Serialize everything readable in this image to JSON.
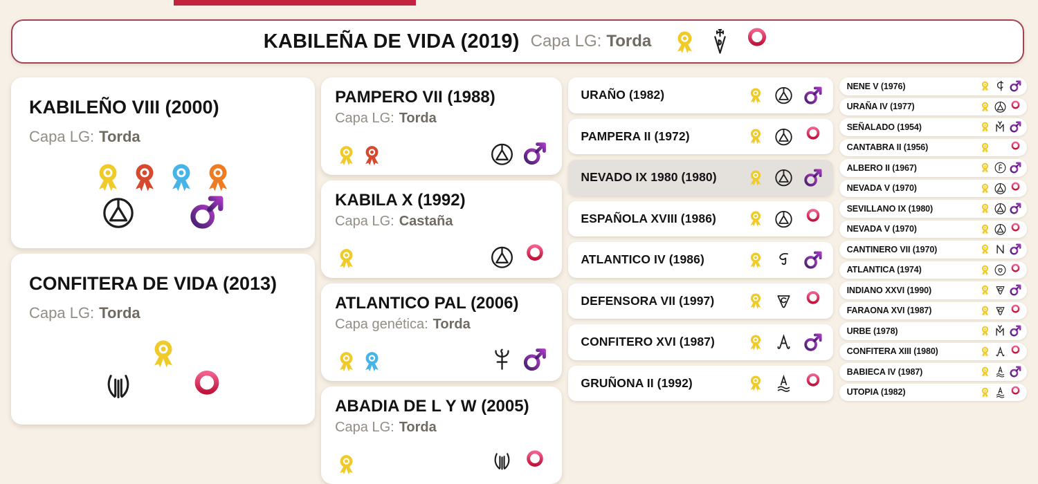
{
  "subject": {
    "name": "KABILEÑA DE VIDA (2019)",
    "capa_label": "Capa LG:",
    "capa_value": "Torda",
    "awards": [
      "yellow"
    ],
    "brand": "vida",
    "sex": "female"
  },
  "parents": [
    {
      "name": "KABILEÑO VIII (2000)",
      "capa_label": "Capa LG:",
      "capa_value": "Torda",
      "awards": [
        "yellow",
        "red",
        "blue",
        "orange"
      ],
      "brand": "circle-triangle",
      "sex": "male"
    },
    {
      "name": "CONFITERA DE VIDA (2013)",
      "capa_label": "Capa LG:",
      "capa_value": "Torda",
      "awards": [
        "yellow"
      ],
      "brand": "lyre",
      "sex": "female"
    }
  ],
  "grandparents": [
    {
      "name": "PAMPERO VII (1988)",
      "capa_label": "Capa LG:",
      "capa_value": "Torda",
      "awards": [
        "yellow",
        "red"
      ],
      "brand": "circle-triangle",
      "sex": "male"
    },
    {
      "name": "KABILA X (1992)",
      "capa_label": "Capa LG:",
      "capa_value": "Castaña",
      "awards": [
        "yellow"
      ],
      "brand": "circle-triangle",
      "sex": "female"
    },
    {
      "name": "ATLANTICO PAL (2006)",
      "capa_label": "Capa genética:",
      "capa_value": "Torda",
      "awards": [
        "yellow",
        "blue"
      ],
      "brand": "palm",
      "sex": "male"
    },
    {
      "name": "ABADIA DE L Y W (2005)",
      "capa_label": "Capa LG:",
      "capa_value": "Torda",
      "awards": [
        "yellow"
      ],
      "brand": "lyre",
      "sex": "female"
    }
  ],
  "great_grandparents": [
    {
      "name": "URAÑO (1982)",
      "awards": [
        "yellow"
      ],
      "brand": "circle-triangle",
      "sex": "male",
      "highlighted": false
    },
    {
      "name": "PAMPERA II (1972)",
      "awards": [
        "yellow"
      ],
      "brand": "circle-triangle",
      "sex": "female",
      "highlighted": false
    },
    {
      "name": "NEVADO IX 1980 (1980)",
      "awards": [
        "yellow"
      ],
      "brand": "circle-triangle",
      "sex": "male",
      "highlighted": true
    },
    {
      "name": "ESPAÑOLA XVIII (1986)",
      "awards": [
        "yellow"
      ],
      "brand": "circle-triangle",
      "sex": "female",
      "highlighted": false
    },
    {
      "name": "ATLANTICO IV (1986)",
      "awards": [
        "yellow"
      ],
      "brand": "hook",
      "sex": "male",
      "highlighted": false
    },
    {
      "name": "DEFENSORA VII (1997)",
      "awards": [
        "yellow"
      ],
      "brand": "shield-c",
      "sex": "female",
      "highlighted": false
    },
    {
      "name": "CONFITERO XVI (1987)",
      "awards": [
        "yellow"
      ],
      "brand": "a-curls",
      "sex": "male",
      "highlighted": false
    },
    {
      "name": "GRUÑONA II (1992)",
      "awards": [
        "yellow"
      ],
      "brand": "a-waves",
      "sex": "female",
      "highlighted": false
    }
  ],
  "great_great_grandparents": [
    {
      "name": "NENE V (1976)",
      "awards": [
        "yellow"
      ],
      "brand": "c-bar",
      "sex": "male"
    },
    {
      "name": "URAÑA IV (1977)",
      "awards": [
        "yellow"
      ],
      "brand": "circle-triangle",
      "sex": "female"
    },
    {
      "name": "SEÑALADO (1954)",
      "awards": [
        "yellow"
      ],
      "brand": "my",
      "sex": "male"
    },
    {
      "name": "CANTABRA II (1956)",
      "awards": [
        "yellow"
      ],
      "brand": null,
      "sex": "female"
    },
    {
      "name": "ALBERO II (1967)",
      "awards": [
        "yellow"
      ],
      "brand": "circle-f",
      "sex": "male"
    },
    {
      "name": "NEVADA V (1970)",
      "awards": [
        "yellow"
      ],
      "brand": "circle-triangle",
      "sex": "female"
    },
    {
      "name": "SEVILLANO IX (1980)",
      "awards": [
        "yellow"
      ],
      "brand": "circle-triangle",
      "sex": "male"
    },
    {
      "name": "NEVADA V (1970)",
      "awards": [
        "yellow"
      ],
      "brand": "circle-triangle",
      "sex": "female"
    },
    {
      "name": "CANTINERO VII (1970)",
      "awards": [
        "yellow"
      ],
      "brand": "n",
      "sex": "male"
    },
    {
      "name": "ATLANTICA (1974)",
      "awards": [
        "yellow"
      ],
      "brand": "circle-heart",
      "sex": "female"
    },
    {
      "name": "INDIANO XXVI (1990)",
      "awards": [
        "yellow"
      ],
      "brand": "shield-c",
      "sex": "male"
    },
    {
      "name": "FARAONA XVI (1987)",
      "awards": [
        "yellow"
      ],
      "brand": "shield-c",
      "sex": "female"
    },
    {
      "name": "URBE (1978)",
      "awards": [
        "yellow"
      ],
      "brand": "my",
      "sex": "male"
    },
    {
      "name": "CONFITERA XIII (1980)",
      "awards": [
        "yellow"
      ],
      "brand": "a-curls",
      "sex": "female"
    },
    {
      "name": "BABIECA IV (1987)",
      "awards": [
        "yellow"
      ],
      "brand": "a-waves",
      "sex": "male"
    },
    {
      "name": "UTOPIA (1982)",
      "awards": [
        "yellow"
      ],
      "brand": "a-waves",
      "sex": "female"
    }
  ],
  "award_colors": {
    "yellow": "#f0ca28",
    "red": "#d7492f",
    "blue": "#47b4e8",
    "orange": "#ee7c22"
  },
  "colors": {
    "top_bar": "#c22440",
    "header_border": "#a34352",
    "highlight_row": "#e4e1dd",
    "male_gradient": [
      "#46206e",
      "#a83ac2"
    ],
    "female_gradient": [
      "#f0608e",
      "#c0143c"
    ]
  }
}
